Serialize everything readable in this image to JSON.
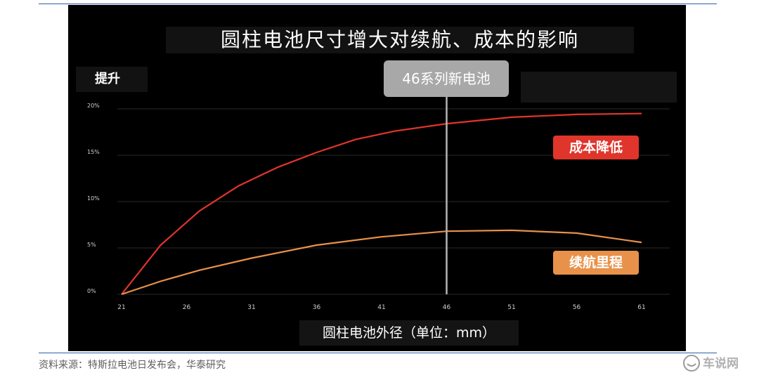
{
  "chart_data": {
    "type": "line",
    "title": "圆柱电池尺寸增大对续航、成本的影响",
    "ylabel": "提升",
    "xlabel": "圆柱电池外径（单位：mm）",
    "x_ticks": [
      "21",
      "26",
      "31",
      "36",
      "41",
      "46",
      "51",
      "56",
      "61"
    ],
    "y_ticks": [
      "0%",
      "5%",
      "10%",
      "15%",
      "20%"
    ],
    "xlim": [
      21,
      61
    ],
    "ylim": [
      0,
      20
    ],
    "grid": true,
    "marker_line": {
      "x": 46,
      "label": "46系列新电池"
    },
    "series": [
      {
        "name": "成本降低",
        "color": "#e0352b",
        "x": [
          21,
          24,
          27,
          30,
          33,
          36,
          39,
          42,
          46,
          51,
          56,
          61
        ],
        "y": [
          0,
          5.3,
          9.0,
          11.7,
          13.7,
          15.3,
          16.7,
          17.6,
          18.4,
          19.1,
          19.4,
          19.5
        ]
      },
      {
        "name": "续航里程",
        "color": "#e8914a",
        "x": [
          21,
          24,
          27,
          31,
          36,
          41,
          46,
          51,
          56,
          61
        ],
        "y": [
          0,
          1.4,
          2.6,
          3.9,
          5.3,
          6.2,
          6.8,
          6.9,
          6.6,
          5.6
        ]
      }
    ]
  },
  "source_text": "资料来源：特斯拉电池日发布会，华泰研究",
  "watermark_text": "车说网"
}
